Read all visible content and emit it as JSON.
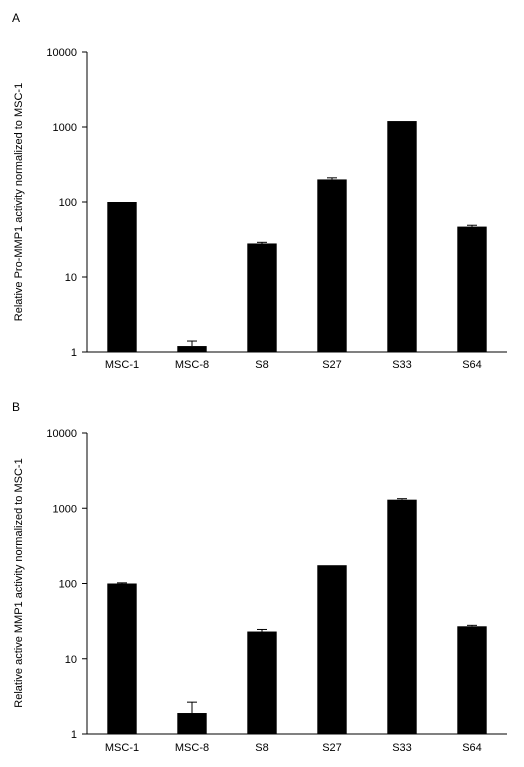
{
  "chart_data": [
    {
      "panel": "A",
      "type": "bar",
      "scale": "log",
      "categories": [
        "MSC-1",
        "MSC-8",
        "S8",
        "S27",
        "S33",
        "S64"
      ],
      "values": [
        100,
        1.2,
        28,
        200,
        1200,
        47
      ],
      "error_upper": [
        0,
        0.2,
        1,
        10,
        0,
        2
      ],
      "ylabel": "Relative Pro-MMP1 activity normalized to MSC-1",
      "ylim": [
        1,
        10000
      ],
      "yticks": [
        "1",
        "10",
        "100",
        "1000",
        "10000"
      ],
      "bar_color": "#000000",
      "grid": false
    },
    {
      "panel": "B",
      "type": "bar",
      "scale": "log",
      "categories": [
        "MSC-1",
        "MSC-8",
        "S8",
        "S27",
        "S33",
        "S64"
      ],
      "values": [
        100,
        1.9,
        23,
        175,
        1300,
        27
      ],
      "error_upper": [
        2,
        0.75,
        1.5,
        0,
        40,
        0.8
      ],
      "ylabel": "Relative active MMP1 activity normalized to MSC-1",
      "ylim": [
        1,
        10000
      ],
      "yticks": [
        "1",
        "10",
        "100",
        "1000",
        "10000"
      ],
      "bar_color": "#000000",
      "grid": false
    }
  ]
}
